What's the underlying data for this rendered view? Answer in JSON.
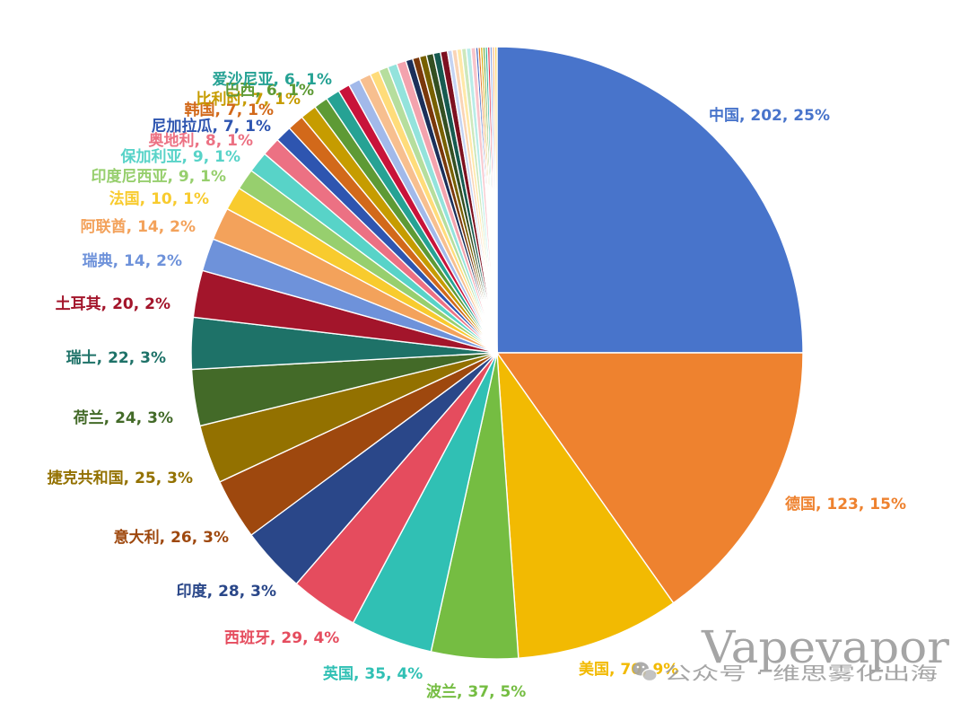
{
  "chart_data": {
    "type": "pie",
    "slices": [
      {
        "name": "中国",
        "value": 202,
        "percent": "25%",
        "color": "#4874CB"
      },
      {
        "name": "德国",
        "value": 123,
        "percent": "15%",
        "color": "#EE822F"
      },
      {
        "name": "美国",
        "value": 70,
        "percent": "9%",
        "color": "#F2BA02"
      },
      {
        "name": "波兰",
        "value": 37,
        "percent": "5%",
        "color": "#75BD42"
      },
      {
        "name": "英国",
        "value": 35,
        "percent": "4%",
        "color": "#30C0B4"
      },
      {
        "name": "西班牙",
        "value": 29,
        "percent": "4%",
        "color": "#E54C5E"
      },
      {
        "name": "印度",
        "value": 28,
        "percent": "3%",
        "color": "#2A4789"
      },
      {
        "name": "意大利",
        "value": 26,
        "percent": "3%",
        "color": "#9E480E"
      },
      {
        "name": "捷克共和国",
        "value": 25,
        "percent": "3%",
        "color": "#937100"
      },
      {
        "name": "荷兰",
        "value": 24,
        "percent": "3%",
        "color": "#436A28"
      },
      {
        "name": "瑞士",
        "value": 22,
        "percent": "3%",
        "color": "#1E7268"
      },
      {
        "name": "土耳其",
        "value": 20,
        "percent": "2%",
        "color": "#A3152B"
      },
      {
        "name": "瑞典",
        "value": 14,
        "percent": "2%",
        "color": "#6E92DA"
      },
      {
        "name": "阿联酋",
        "value": 14,
        "percent": "2%",
        "color": "#F3A25B"
      },
      {
        "name": "法国",
        "value": 10,
        "percent": "1%",
        "color": "#F8CB2E"
      },
      {
        "name": "印度尼西亚",
        "value": 9,
        "percent": "1%",
        "color": "#97CF6E"
      },
      {
        "name": "保加利亚",
        "value": 9,
        "percent": "1%",
        "color": "#58D3C8"
      },
      {
        "name": "奥地利",
        "value": 8,
        "percent": "1%",
        "color": "#EC7183"
      },
      {
        "name": "尼加拉瓜",
        "value": 7,
        "percent": "1%",
        "color": "#2E55B0"
      },
      {
        "name": "韩国",
        "value": 7,
        "percent": "1%",
        "color": "#D2691A"
      },
      {
        "name": "比利时",
        "value": 7,
        "percent": "1%",
        "color": "#C69C00"
      },
      {
        "name": "巴西",
        "value": 6,
        "percent": "1%",
        "color": "#5E9A35"
      },
      {
        "name": "爱沙尼亚",
        "value": 6,
        "percent": "1%",
        "color": "#26A294"
      },
      {
        "value": 5,
        "color": "#C8133A"
      },
      {
        "value": 5,
        "color": "#A2B9EA"
      },
      {
        "value": 5,
        "color": "#F7BF8F"
      },
      {
        "value": 4,
        "color": "#FFDC7A"
      },
      {
        "value": 4,
        "color": "#B6DE9D"
      },
      {
        "value": 4,
        "color": "#93E3DC"
      },
      {
        "value": 4,
        "color": "#F3A3AE"
      },
      {
        "value": 3,
        "color": "#1B2F5A"
      },
      {
        "value": 3,
        "color": "#7A380B"
      },
      {
        "value": 3,
        "color": "#776000"
      },
      {
        "value": 3,
        "color": "#344F22"
      },
      {
        "value": 3,
        "color": "#165A50"
      },
      {
        "value": 3,
        "color": "#7D1020"
      },
      {
        "value": 2,
        "color": "#C5D4F3"
      },
      {
        "value": 2,
        "color": "#FAD4B5"
      },
      {
        "value": 2,
        "color": "#FFE8A8"
      },
      {
        "value": 2,
        "color": "#CDE8BC"
      },
      {
        "value": 2,
        "color": "#B9ECE8"
      },
      {
        "value": 2,
        "color": "#F8C5CC"
      },
      {
        "value": 1,
        "color": "#3A5FBE"
      },
      {
        "value": 1,
        "color": "#E0701F"
      },
      {
        "value": 1,
        "color": "#D8AA00"
      },
      {
        "value": 1,
        "color": "#67A93A"
      },
      {
        "value": 1,
        "color": "#2AB09E"
      },
      {
        "value": 1,
        "color": "#DA2A4A"
      },
      {
        "value": 1,
        "color": "#8FA8E4"
      },
      {
        "value": 1,
        "color": "#F4B07A"
      },
      {
        "value": 1,
        "color": "#FFD55A"
      }
    ]
  },
  "watermark": {
    "logo": "Vapevapor",
    "caption": "公众号 · 维思雾化出海",
    "icon": "wechat-icon",
    "color": "#9C9C9C"
  }
}
